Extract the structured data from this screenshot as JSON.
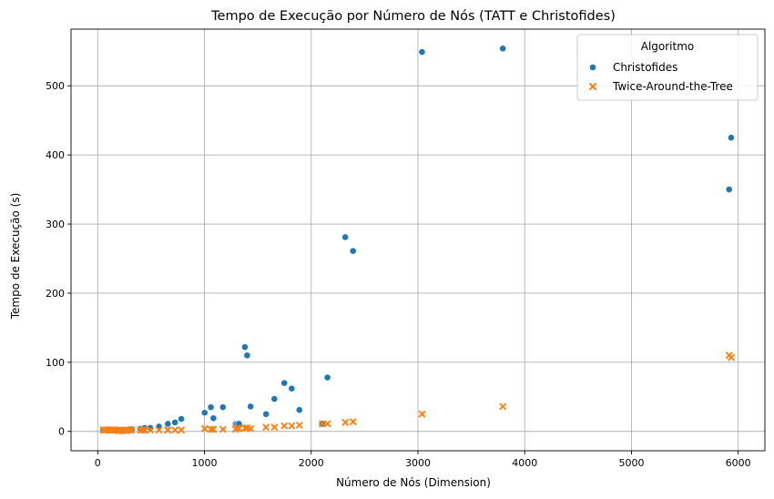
{
  "chart_data": {
    "type": "scatter",
    "title": "Tempo de Execução por Número de Nós (TATT e Christofides)",
    "xlabel": "Número de Nós (Dimension)",
    "ylabel": "Tempo de Execução (s)",
    "xlim": [
      -250,
      6250
    ],
    "ylim": [
      -28,
      582
    ],
    "xticks": [
      0,
      1000,
      2000,
      3000,
      4000,
      5000,
      6000
    ],
    "yticks": [
      0,
      100,
      200,
      300,
      400,
      500
    ],
    "grid": true,
    "legend": {
      "title": "Algoritmo",
      "placement": "top-right"
    },
    "series": [
      {
        "name": "Christofides",
        "marker": "circle",
        "color": "#1f77b4",
        "points": [
          [
            51,
            2
          ],
          [
            70,
            2
          ],
          [
            76,
            2
          ],
          [
            99,
            2
          ],
          [
            100,
            2
          ],
          [
            101,
            1
          ],
          [
            105,
            2
          ],
          [
            107,
            2
          ],
          [
            124,
            2
          ],
          [
            127,
            2
          ],
          [
            130,
            2
          ],
          [
            136,
            2
          ],
          [
            144,
            2
          ],
          [
            150,
            2
          ],
          [
            152,
            2
          ],
          [
            159,
            2
          ],
          [
            195,
            1
          ],
          [
            198,
            1
          ],
          [
            200,
            2
          ],
          [
            225,
            1
          ],
          [
            226,
            1
          ],
          [
            262,
            2
          ],
          [
            264,
            1
          ],
          [
            280,
            2
          ],
          [
            299,
            3
          ],
          [
            318,
            3
          ],
          [
            400,
            4
          ],
          [
            417,
            4
          ],
          [
            439,
            5
          ],
          [
            493,
            5
          ],
          [
            574,
            7
          ],
          [
            654,
            10
          ],
          [
            657,
            11
          ],
          [
            724,
            13
          ],
          [
            783,
            18
          ],
          [
            1002,
            27
          ],
          [
            1060,
            35
          ],
          [
            1084,
            19
          ],
          [
            1173,
            35
          ],
          [
            1291,
            11
          ],
          [
            1304,
            11
          ],
          [
            1323,
            11
          ],
          [
            1379,
            122
          ],
          [
            1400,
            110
          ],
          [
            1432,
            36
          ],
          [
            1577,
            25
          ],
          [
            1655,
            47
          ],
          [
            1748,
            70
          ],
          [
            1817,
            62
          ],
          [
            2103,
            11
          ],
          [
            2152,
            78
          ],
          [
            1889,
            31
          ],
          [
            2319,
            281
          ],
          [
            2392,
            261
          ],
          [
            3038,
            549
          ],
          [
            3795,
            554
          ],
          [
            5915,
            350
          ],
          [
            5934,
            425
          ]
        ]
      },
      {
        "name": "Twice-Around-the-Tree",
        "marker": "x",
        "color": "#ff7f0e",
        "points": [
          [
            51,
            2
          ],
          [
            70,
            2
          ],
          [
            76,
            2
          ],
          [
            99,
            2
          ],
          [
            100,
            2
          ],
          [
            101,
            2
          ],
          [
            105,
            2
          ],
          [
            107,
            2
          ],
          [
            124,
            2
          ],
          [
            127,
            2
          ],
          [
            130,
            2
          ],
          [
            136,
            2
          ],
          [
            144,
            2
          ],
          [
            150,
            2
          ],
          [
            152,
            2
          ],
          [
            159,
            2
          ],
          [
            195,
            1
          ],
          [
            198,
            1
          ],
          [
            200,
            2
          ],
          [
            225,
            1
          ],
          [
            226,
            1
          ],
          [
            262,
            2
          ],
          [
            264,
            1
          ],
          [
            280,
            2
          ],
          [
            299,
            2
          ],
          [
            318,
            2
          ],
          [
            400,
            2
          ],
          [
            417,
            2
          ],
          [
            439,
            2
          ],
          [
            493,
            2
          ],
          [
            574,
            2
          ],
          [
            654,
            2
          ],
          [
            657,
            2
          ],
          [
            724,
            2
          ],
          [
            783,
            2
          ],
          [
            1002,
            4
          ],
          [
            1060,
            3
          ],
          [
            1084,
            3
          ],
          [
            1173,
            3
          ],
          [
            1291,
            3
          ],
          [
            1304,
            5
          ],
          [
            1323,
            4
          ],
          [
            1379,
            5
          ],
          [
            1400,
            5
          ],
          [
            1432,
            4
          ],
          [
            1577,
            6
          ],
          [
            1655,
            6
          ],
          [
            1748,
            8
          ],
          [
            1817,
            8
          ],
          [
            1889,
            9
          ],
          [
            2103,
            11
          ],
          [
            2152,
            11
          ],
          [
            2319,
            13
          ],
          [
            2392,
            14
          ],
          [
            3038,
            25
          ],
          [
            3795,
            36
          ],
          [
            5915,
            110
          ],
          [
            5934,
            107
          ]
        ]
      }
    ]
  }
}
